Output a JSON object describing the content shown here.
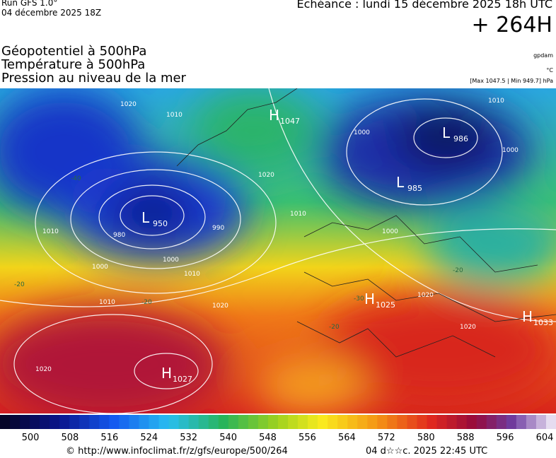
{
  "header": {
    "run": "Run GFS 1.0°",
    "run_date": "04 décembre 2025 18Z",
    "forecast": "Echéance : lundi 15 décembre 2025 18h UTC",
    "lead": "+ 264H",
    "fields": [
      "Géopotentiel à 500hPa",
      "Température à 500hPa",
      "Pression au niveau de la mer"
    ],
    "units": [
      "gpdam",
      "°C",
      "[Max 1047.5 | Min 949.7] hPa"
    ]
  },
  "map": {
    "centers": [
      {
        "letter": "L",
        "value": 950
      },
      {
        "letter": "L",
        "value": 986
      },
      {
        "letter": "L",
        "value": 985
      },
      {
        "letter": "H",
        "value": 1047
      },
      {
        "letter": "H",
        "value": 1027
      },
      {
        "letter": "H",
        "value": 1025
      },
      {
        "letter": "H",
        "value": 1033
      }
    ],
    "isobar_labels": [
      1020,
      1010,
      990,
      980,
      1000,
      1010,
      1000,
      1020,
      1010,
      1000,
      1010,
      1010,
      1000,
      1020,
      1020,
      1020,
      1020,
      1010,
      1000
    ],
    "temp_labels": [
      -40,
      -20,
      -20,
      -30,
      -20,
      -20
    ]
  },
  "colorbar": {
    "ticks": [
      500,
      508,
      516,
      524,
      532,
      540,
      548,
      556,
      564,
      572,
      580,
      588,
      596,
      604
    ]
  },
  "footer": {
    "source": "© http://www.infoclimat.fr/z/gfs/europe/500/264",
    "timestamp": "04 d☆☆c. 2025 22:45 UTC"
  }
}
